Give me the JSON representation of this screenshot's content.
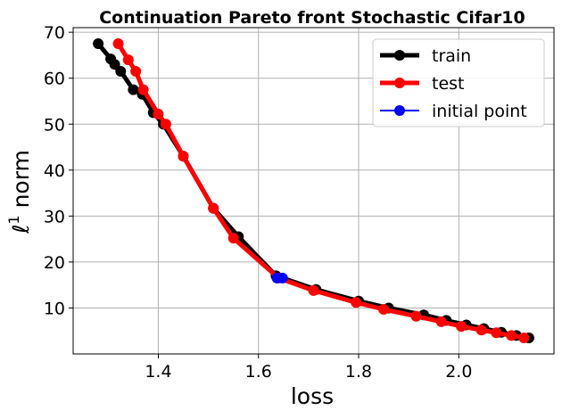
{
  "chart_data": {
    "type": "line",
    "title": "Continuation Pareto front Stochastic Cifar10",
    "xlabel": "loss",
    "ylabel_main": "ℓ",
    "ylabel_sup": "1",
    "ylabel_rest": " norm",
    "xlim": [
      1.23,
      2.19
    ],
    "ylim": [
      0,
      71
    ],
    "xticks": [
      1.4,
      1.6,
      1.8,
      2.0
    ],
    "xtick_labels": [
      "1.4",
      "1.6",
      "1.8",
      "2.0"
    ],
    "yticks": [
      10,
      20,
      30,
      40,
      50,
      60,
      70
    ],
    "ytick_labels": [
      "10",
      "20",
      "30",
      "40",
      "50",
      "60",
      "70"
    ],
    "grid": true,
    "legend_position": "top-right",
    "series": [
      {
        "name": "train",
        "color": "#000000",
        "x": [
          1.28,
          1.305,
          1.313,
          1.325,
          1.35,
          1.368,
          1.39,
          1.41,
          1.45,
          1.51,
          1.56,
          1.635,
          1.715,
          1.8,
          1.86,
          1.93,
          1.975,
          2.015,
          2.05,
          2.085,
          2.115,
          2.14
        ],
        "y": [
          67.5,
          64.2,
          63.0,
          61.5,
          57.5,
          56.5,
          52.5,
          50.0,
          43.0,
          31.7,
          25.5,
          17.0,
          14.0,
          11.5,
          10.0,
          8.5,
          7.3,
          6.3,
          5.5,
          4.7,
          4.0,
          3.5
        ]
      },
      {
        "name": "test",
        "color": "#ff0000",
        "x": [
          1.32,
          1.34,
          1.355,
          1.37,
          1.4,
          1.415,
          1.45,
          1.51,
          1.55,
          1.64,
          1.71,
          1.795,
          1.85,
          1.915,
          1.965,
          2.005,
          2.045,
          2.075,
          2.105,
          2.13
        ],
        "y": [
          67.5,
          64.0,
          61.5,
          57.5,
          52.2,
          50.0,
          43.0,
          31.7,
          25.2,
          16.5,
          13.8,
          11.2,
          9.7,
          8.2,
          7.0,
          6.0,
          5.2,
          4.6,
          4.0,
          3.5
        ]
      },
      {
        "name": "initial point",
        "color": "#0000ff",
        "x": [
          1.637,
          1.648
        ],
        "y": [
          16.5,
          16.5
        ]
      }
    ]
  }
}
